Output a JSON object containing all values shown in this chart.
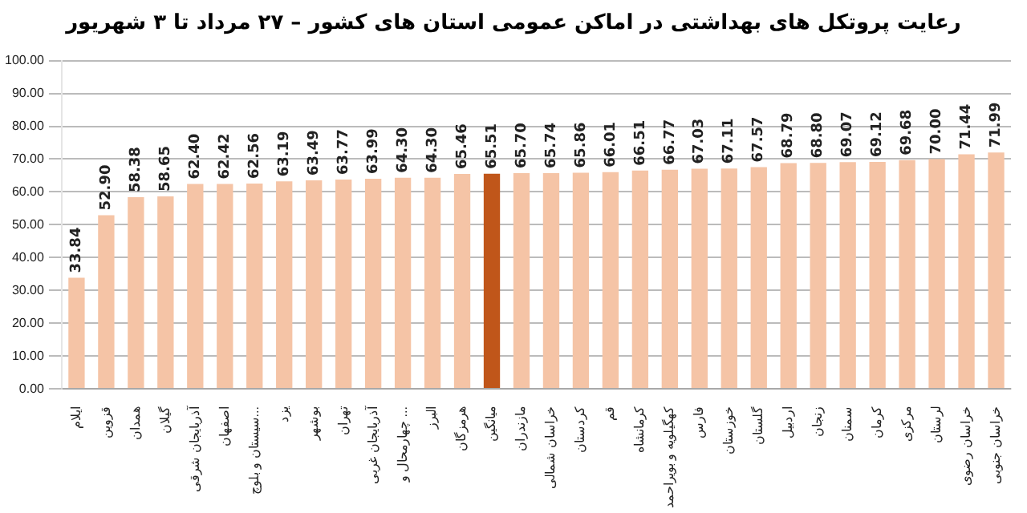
{
  "chart_data": {
    "type": "bar",
    "title": "رعایت پروتکل های بهداشتی در اماکن عمومی استان های کشور  – ۲۷ مرداد تا ۳ شهریور",
    "categories": [
      "ایلام",
      "قزوین",
      "همدان",
      "گیلان",
      "آذربایجان شرقی",
      "اصفهان",
      "سیستان و بلوچ...",
      "یزد",
      "بوشهر",
      "تهران",
      "آذربایجان غربی",
      "چهارمحال و ...",
      "البرز",
      "هرمزگان",
      "میانگین",
      "مازندران",
      "خراسان شمالی",
      "کردستان",
      "قم",
      "کرمانشاه",
      "کهگیلویه و بویراحمد",
      "فارس",
      "خوزستان",
      "گلستان",
      "اردبیل",
      "زنجان",
      "سمنان",
      "کرمان",
      "مرکزی",
      "لرستان",
      "خراسان رضوی",
      "خراسان جنوبی"
    ],
    "values": [
      33.84,
      52.9,
      58.38,
      58.65,
      62.4,
      62.42,
      62.56,
      63.19,
      63.49,
      63.77,
      63.99,
      64.3,
      64.3,
      65.46,
      65.51,
      65.7,
      65.74,
      65.86,
      66.01,
      66.51,
      66.77,
      67.03,
      67.11,
      67.57,
      68.79,
      68.8,
      69.07,
      69.12,
      69.68,
      70.0,
      71.44,
      71.99
    ],
    "value_labels": [
      "33.84",
      "52.90",
      "58.38",
      "58.65",
      "62.40",
      "62.42",
      "62.56",
      "63.19",
      "63.49",
      "63.77",
      "63.99",
      "64.30",
      "64.30",
      "65.46",
      "65.51",
      "65.70",
      "65.74",
      "65.86",
      "66.01",
      "66.51",
      "66.77",
      "67.03",
      "67.11",
      "67.57",
      "68.79",
      "68.80",
      "69.07",
      "69.12",
      "69.68",
      "70.00",
      "71.44",
      "71.99"
    ],
    "colors": [
      "#f5c4a6",
      "#f5c4a6",
      "#f5c4a6",
      "#f5c4a6",
      "#f5c4a6",
      "#f5c4a6",
      "#f5c4a6",
      "#f5c4a6",
      "#f5c4a6",
      "#f5c4a6",
      "#f5c4a6",
      "#f5c4a6",
      "#f5c4a6",
      "#f5c4a6",
      "#c0561a",
      "#f5c4a6",
      "#f5c4a6",
      "#f5c4a6",
      "#f5c4a6",
      "#f5c4a6",
      "#f5c4a6",
      "#f5c4a6",
      "#f5c4a6",
      "#f5c4a6",
      "#f5c4a6",
      "#f5c4a6",
      "#f5c4a6",
      "#f5c4a6",
      "#f5c4a6",
      "#f5c4a6",
      "#f5c4a6",
      "#f5c4a6"
    ],
    "ylim": [
      0,
      100
    ],
    "yticks": [
      {
        "value": 0,
        "label": "0.00"
      },
      {
        "value": 10,
        "label": "10.00"
      },
      {
        "value": 20,
        "label": "20.00"
      },
      {
        "value": 30,
        "label": "30.00"
      },
      {
        "value": 40,
        "label": "40.00"
      },
      {
        "value": 50,
        "label": "50.00"
      },
      {
        "value": 60,
        "label": "60.00"
      },
      {
        "value": 70,
        "label": "70.00"
      },
      {
        "value": 80,
        "label": "80.00"
      },
      {
        "value": 90,
        "label": "90.00"
      },
      {
        "value": 100,
        "label": "100.00"
      }
    ],
    "grid": "y",
    "legend": false
  }
}
